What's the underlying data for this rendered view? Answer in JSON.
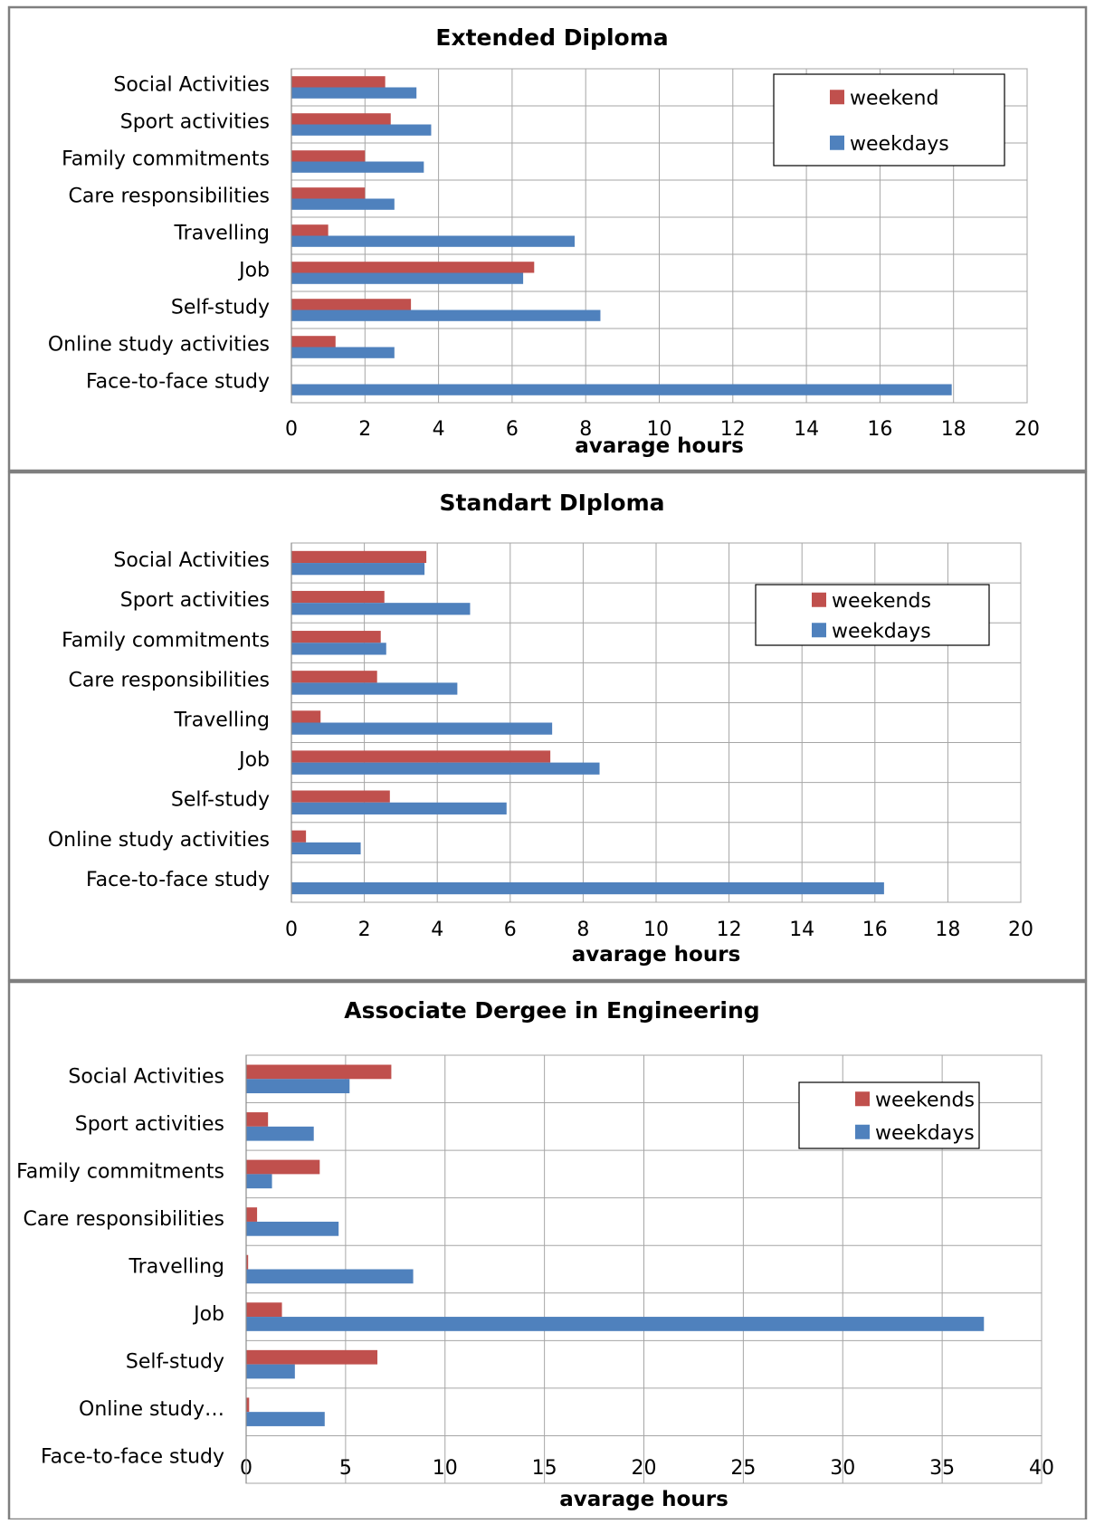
{
  "chart_data": [
    {
      "type": "bar",
      "orientation": "horizontal",
      "title": "Extended Diploma",
      "xlabel": "avarage hours",
      "ylabel": "",
      "xlim": [
        0,
        20
      ],
      "x_ticks": [
        "0",
        "2",
        "4",
        "6",
        "8",
        "10",
        "12",
        "14",
        "16",
        "18",
        "20"
      ],
      "grid": true,
      "legend_position": "top-right",
      "categories": [
        "Social Activities",
        "Sport activities",
        "Family commitments",
        "Care responsibilities",
        "Travelling",
        "Job",
        "Self-study",
        "Online study activities",
        "Face-to-face study"
      ],
      "series": [
        {
          "name": "weekend",
          "color": "#c0504d",
          "values": [
            2.55,
            2.7,
            2.0,
            2.0,
            1.0,
            6.6,
            3.25,
            1.2,
            0
          ]
        },
        {
          "name": "weekdays",
          "color": "#4f81bd",
          "values": [
            3.4,
            3.8,
            3.6,
            2.8,
            7.7,
            6.3,
            8.4,
            2.8,
            17.95
          ]
        }
      ]
    },
    {
      "type": "bar",
      "orientation": "horizontal",
      "title": "Standart DIploma",
      "xlabel": "avarage hours",
      "ylabel": "",
      "xlim": [
        0,
        20
      ],
      "x_ticks": [
        "0",
        "2",
        "4",
        "6",
        "8",
        "10",
        "12",
        "14",
        "16",
        "18",
        "20"
      ],
      "grid": true,
      "legend_position": "top-right",
      "categories": [
        "Social Activities",
        "Sport activities",
        "Family commitments",
        "Care responsibilities",
        "Travelling",
        "Job",
        "Self-study",
        "Online study activities",
        "Face-to-face study"
      ],
      "series": [
        {
          "name": "weekends",
          "color": "#c0504d",
          "values": [
            3.7,
            2.55,
            2.45,
            2.35,
            0.8,
            7.1,
            2.7,
            0.4,
            0
          ]
        },
        {
          "name": "weekdays",
          "color": "#4f81bd",
          "values": [
            3.65,
            4.9,
            2.6,
            4.55,
            7.15,
            8.45,
            5.9,
            1.9,
            16.25
          ]
        }
      ]
    },
    {
      "type": "bar",
      "orientation": "horizontal",
      "title": "Associate Dergee in Engineering",
      "xlabel": "avarage hours",
      "ylabel": "",
      "xlim": [
        0,
        40
      ],
      "x_ticks": [
        "0",
        "5",
        "10",
        "15",
        "20",
        "25",
        "30",
        "35",
        "40"
      ],
      "grid": true,
      "legend_position": "top-right",
      "categories": [
        "Social Activities",
        "Sport activities",
        "Family commitments",
        "Care responsibilities",
        "Travelling",
        "Job",
        "Self-study",
        "Online study…",
        "Face-to-face study"
      ],
      "series": [
        {
          "name": "weekends",
          "color": "#c0504d",
          "values": [
            7.3,
            1.1,
            3.7,
            0.55,
            0.1,
            1.8,
            6.6,
            0.15,
            0
          ]
        },
        {
          "name": "weekdays",
          "color": "#4f81bd",
          "values": [
            5.2,
            3.4,
            1.3,
            4.65,
            8.4,
            37.1,
            2.45,
            3.95,
            0
          ]
        }
      ]
    }
  ]
}
